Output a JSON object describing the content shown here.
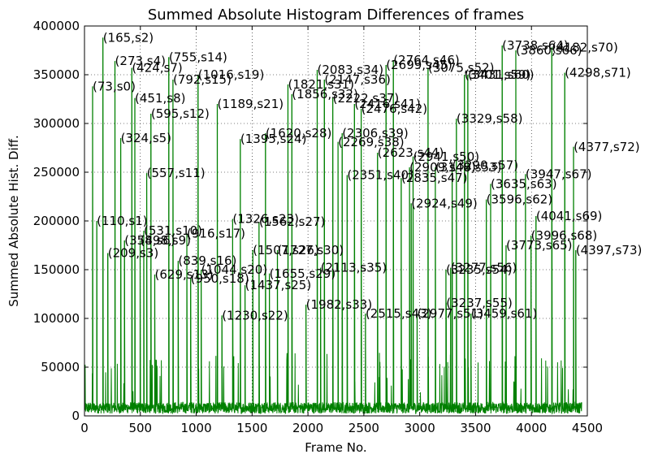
{
  "chart_data": {
    "type": "line",
    "title": "Summed Absolute Histogram Differences of frames",
    "xlabel": "Frame No.",
    "ylabel": "Summed Absolute Hist. Diff.",
    "xlim": [
      0,
      4500
    ],
    "ylim": [
      0,
      400000
    ],
    "xticks": [
      0,
      500,
      1000,
      1500,
      2000,
      2500,
      3000,
      3500,
      4000,
      4500
    ],
    "yticks": [
      0,
      50000,
      100000,
      150000,
      200000,
      250000,
      300000,
      350000,
      400000
    ],
    "grid": true,
    "series_color": "#008000",
    "baseline_level": 12000,
    "peaks": [
      {
        "x": 73,
        "y": 338000,
        "label": "(73,s0)"
      },
      {
        "x": 110,
        "y": 200000,
        "label": "(110,s1)"
      },
      {
        "x": 165,
        "y": 388000,
        "label": "(165,s2)"
      },
      {
        "x": 209,
        "y": 167000,
        "label": "(209,s3)"
      },
      {
        "x": 273,
        "y": 364000,
        "label": "(273,s4)"
      },
      {
        "x": 324,
        "y": 285000,
        "label": "(324,s5)"
      },
      {
        "x": 358,
        "y": 180000,
        "label": "(358,s6)"
      },
      {
        "x": 424,
        "y": 357000,
        "label": "(424,s7)"
      },
      {
        "x": 451,
        "y": 326000,
        "label": "(451,s8)"
      },
      {
        "x": 498,
        "y": 180000,
        "label": "(498,s9)"
      },
      {
        "x": 531,
        "y": 190000,
        "label": "(531,s10)"
      },
      {
        "x": 557,
        "y": 249000,
        "label": "(557,s11)"
      },
      {
        "x": 595,
        "y": 310000,
        "label": "(595,s12)"
      },
      {
        "x": 629,
        "y": 145000,
        "label": "(629,s13)"
      },
      {
        "x": 755,
        "y": 368000,
        "label": "(755,s14)"
      },
      {
        "x": 792,
        "y": 345000,
        "label": "(792,s15)"
      },
      {
        "x": 839,
        "y": 159000,
        "label": "(839,s16)"
      },
      {
        "x": 916,
        "y": 187000,
        "label": "(916,s17)"
      },
      {
        "x": 950,
        "y": 141000,
        "label": "(950,s18)"
      },
      {
        "x": 1016,
        "y": 350000,
        "label": "(1016,s19)"
      },
      {
        "x": 1044,
        "y": 150000,
        "label": "(1044,s20)"
      },
      {
        "x": 1189,
        "y": 320000,
        "label": "(1189,s21)"
      },
      {
        "x": 1230,
        "y": 103000,
        "label": "(1230,s22)"
      },
      {
        "x": 1326,
        "y": 202000,
        "label": "(1326,s23)"
      },
      {
        "x": 1395,
        "y": 284000,
        "label": "(1395,s24)"
      },
      {
        "x": 1437,
        "y": 134000,
        "label": "(1437,s25)"
      },
      {
        "x": 1507,
        "y": 170000,
        "label": "(1507,s26)"
      },
      {
        "x": 1562,
        "y": 199000,
        "label": "(1562,s27)"
      },
      {
        "x": 1620,
        "y": 290000,
        "label": "(1620,s28)"
      },
      {
        "x": 1655,
        "y": 146000,
        "label": "(1655,s29)"
      },
      {
        "x": 1727,
        "y": 170000,
        "label": "(1727,s30)"
      },
      {
        "x": 1821,
        "y": 340000,
        "label": "(1821,s31)"
      },
      {
        "x": 1856,
        "y": 330000,
        "label": "(1856,s32)"
      },
      {
        "x": 1982,
        "y": 114000,
        "label": "(1982,s33)"
      },
      {
        "x": 2083,
        "y": 355000,
        "label": "(2083,s34)"
      },
      {
        "x": 2113,
        "y": 152000,
        "label": "(2113,s35)"
      },
      {
        "x": 2147,
        "y": 345000,
        "label": "(2147,s36)"
      },
      {
        "x": 2222,
        "y": 326000,
        "label": "(2222,s37)"
      },
      {
        "x": 2269,
        "y": 281000,
        "label": "(2269,s38)"
      },
      {
        "x": 2306,
        "y": 290000,
        "label": "(2306,s39)"
      },
      {
        "x": 2351,
        "y": 247000,
        "label": "(2351,s40)"
      },
      {
        "x": 2416,
        "y": 320000,
        "label": "(2416,s41)"
      },
      {
        "x": 2476,
        "y": 315000,
        "label": "(2476,s42)"
      },
      {
        "x": 2515,
        "y": 105000,
        "label": "(2515,s43)"
      },
      {
        "x": 2623,
        "y": 270000,
        "label": "(2623,s44)"
      },
      {
        "x": 2699,
        "y": 360000,
        "label": "(2699,s45)"
      },
      {
        "x": 2764,
        "y": 365000,
        "label": "(2764,s46)"
      },
      {
        "x": 2835,
        "y": 244000,
        "label": "(2835,s47)"
      },
      {
        "x": 2909,
        "y": 255000,
        "label": "(2909,s48)"
      },
      {
        "x": 2924,
        "y": 218000,
        "label": "(2924,s49)"
      },
      {
        "x": 2941,
        "y": 266000,
        "label": "(2941,s50)"
      },
      {
        "x": 2977,
        "y": 105000,
        "label": "(2977,s51)"
      },
      {
        "x": 3075,
        "y": 357000,
        "label": "(3075,s52)"
      },
      {
        "x": 3140,
        "y": 255000,
        "label": "(3140,s53)"
      },
      {
        "x": 3235,
        "y": 150000,
        "label": "(3235,s54)"
      },
      {
        "x": 3237,
        "y": 116000,
        "label": "(3237,s55)"
      },
      {
        "x": 3277,
        "y": 152000,
        "label": "(3277,s56)"
      },
      {
        "x": 3290,
        "y": 257000,
        "label": "(3290,s57)"
      },
      {
        "x": 3329,
        "y": 305000,
        "label": "(3329,s58)"
      },
      {
        "x": 3401,
        "y": 350000,
        "label": "(3401,s59)"
      },
      {
        "x": 3431,
        "y": 350000,
        "label": "(3431,s60)"
      },
      {
        "x": 3459,
        "y": 105000,
        "label": "(3459,s61)"
      },
      {
        "x": 3596,
        "y": 222000,
        "label": "(3596,s62)"
      },
      {
        "x": 3635,
        "y": 238000,
        "label": "(3635,s63)"
      },
      {
        "x": 3738,
        "y": 380000,
        "label": "(3738,s64)"
      },
      {
        "x": 3773,
        "y": 175000,
        "label": "(3773,s65)"
      },
      {
        "x": 3860,
        "y": 375000,
        "label": "(3860,s66)"
      },
      {
        "x": 3947,
        "y": 248000,
        "label": "(3947,s67)"
      },
      {
        "x": 3996,
        "y": 185000,
        "label": "(3996,s68)"
      },
      {
        "x": 4041,
        "y": 205000,
        "label": "(4041,s69)"
      },
      {
        "x": 4182,
        "y": 378000,
        "label": "(4182,s70)"
      },
      {
        "x": 4298,
        "y": 352000,
        "label": "(4298,s71)"
      },
      {
        "x": 4377,
        "y": 276000,
        "label": "(4377,s72)"
      },
      {
        "x": 4397,
        "y": 170000,
        "label": "(4397,s73)"
      }
    ]
  }
}
